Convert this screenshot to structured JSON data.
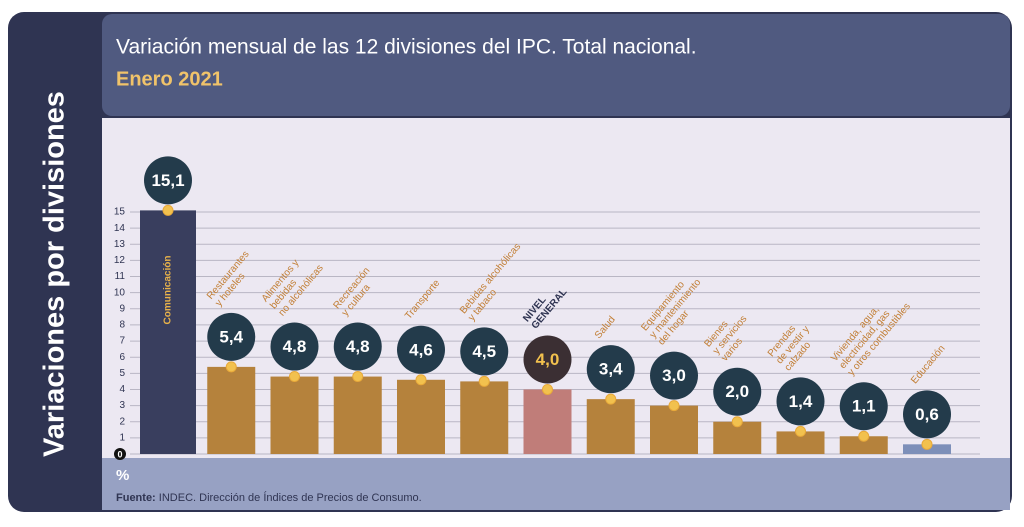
{
  "side_label": "Variaciones por divisiones",
  "chart_data": {
    "type": "bar",
    "title": "Variación mensual de las 12 divisiones del IPC. Total nacional.",
    "subtitle": "Enero 2021",
    "y_label": "%",
    "source_label": "Fuente:",
    "source": "INDEC. Dirección de Índices de Precios de Consumo.",
    "categories": [
      "Comunicación",
      "Restaurantes\ny hoteles",
      "Alimentos y\nbebidas\nno alcohólicas",
      "Recreación\ny cultura",
      "Transporte",
      "Bebidas alcohólicas\ny tabaco",
      "NIVEL\nGENERAL",
      "Salud",
      "Equipamiento\ny mantenimiento\ndel hogar",
      "Bienes\ny servicios\nvarios",
      "Prendas\nde vestir y\ncalzado",
      "Vivienda, agua,\nelectricidad, gas\ny otros combustibles",
      "Educación"
    ],
    "values": [
      15.1,
      5.4,
      4.8,
      4.8,
      4.6,
      4.5,
      4.0,
      3.4,
      3.0,
      2.0,
      1.4,
      1.1,
      0.6
    ],
    "value_labels": [
      "15,1",
      "5,4",
      "4,8",
      "4,8",
      "4,6",
      "4,5",
      "4,0",
      "3,4",
      "3,0",
      "2,0",
      "1,4",
      "1,1",
      "0,6"
    ],
    "colors": [
      "#393e5e",
      "#b5823c",
      "#b5823c",
      "#b5823c",
      "#b5823c",
      "#b5823c",
      "#c07d79",
      "#b5823c",
      "#b5823c",
      "#b5823c",
      "#b5823c",
      "#b5823c",
      "#7d8fb9"
    ],
    "ylim": [
      0,
      15
    ],
    "yticks": [
      0,
      1,
      2,
      3,
      4,
      5,
      6,
      7,
      8,
      9,
      10,
      11,
      12,
      13,
      14,
      15
    ],
    "grid": true
  }
}
